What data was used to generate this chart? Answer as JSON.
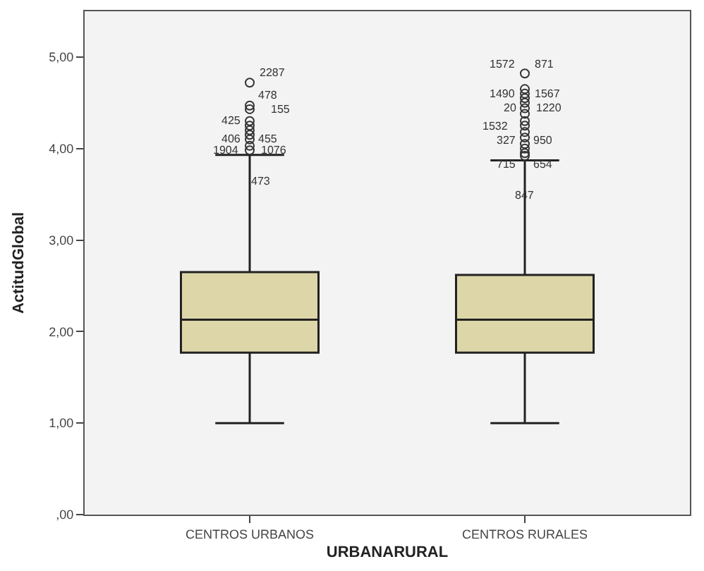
{
  "chart_data": {
    "type": "box",
    "xlabel": "URBANARURAL",
    "ylabel": "ActitudGlobal",
    "categories": [
      "CENTROS URBANOS",
      "CENTROS RURALES"
    ],
    "boxes": [
      {
        "low": 1.0,
        "q1": 1.77,
        "median": 2.13,
        "q3": 2.65,
        "high": 3.93,
        "outliers": [
          4.72,
          4.47,
          4.43,
          4.3,
          4.25,
          4.2,
          4.15,
          4.1,
          4.03,
          3.98
        ]
      },
      {
        "low": 1.0,
        "q1": 1.77,
        "median": 2.13,
        "q3": 2.62,
        "high": 3.87,
        "outliers": [
          4.82,
          4.65,
          4.6,
          4.55,
          4.5,
          4.44,
          4.38,
          4.3,
          4.25,
          4.18,
          4.12,
          4.05,
          4.0,
          3.95,
          3.92
        ]
      }
    ],
    "colors": [
      "#ddd6a8",
      "#ddd6a8"
    ],
    "ylim": [
      0,
      5.5
    ],
    "yticks": [
      {
        "value": 0,
        "label": ",00"
      },
      {
        "value": 1,
        "label": "1,00"
      },
      {
        "value": 2,
        "label": "2,00"
      },
      {
        "value": 3,
        "label": "3,00"
      },
      {
        "value": 4,
        "label": "4,00"
      },
      {
        "value": 5,
        "label": "5,00"
      }
    ],
    "annotations": [
      "2287",
      "478",
      "155",
      "425",
      "406",
      "455",
      "1904",
      "1076",
      "473",
      "1572",
      "871",
      "1490",
      "1567",
      "20",
      "1220",
      "1532",
      "327",
      "950",
      "715",
      "654",
      "847"
    ],
    "grid": false
  }
}
